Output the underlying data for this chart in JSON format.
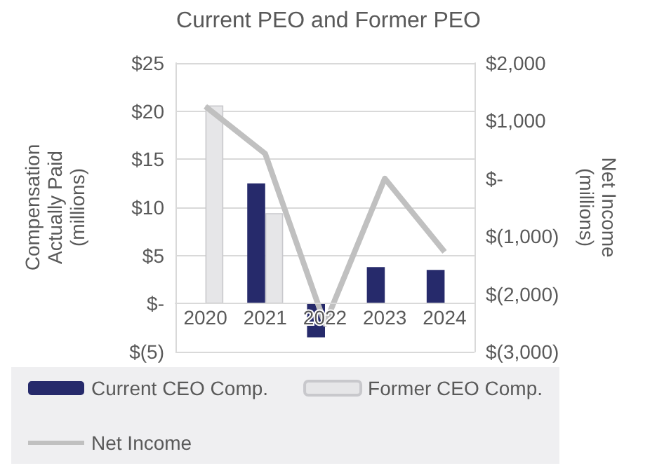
{
  "chart_data": {
    "type": "bar",
    "title": "Current PEO and Former PEO",
    "ylabel": "Compensation Actually Paid (millions)",
    "y2label": "Net Income (millions)",
    "categories": [
      "2020",
      "2021",
      "2022",
      "2023",
      "2024"
    ],
    "series": [
      {
        "name": "Current CEO Comp.",
        "color": "#262a6b",
        "values": [
          null,
          12.5,
          -3.5,
          3.8,
          3.5
        ]
      },
      {
        "name": "Former CEO Comp.",
        "color": "#e6e6e8",
        "values": [
          20.6,
          9.4,
          null,
          null,
          null
        ]
      },
      {
        "name": "Net Income",
        "type": "line",
        "axis": "y2",
        "color": "#c0c0c0",
        "values": [
          1250,
          430,
          -2520,
          0,
          -1270
        ]
      }
    ],
    "ylim": [
      -5,
      25
    ],
    "yticks": [
      {
        "value": -5,
        "label": "$(5)"
      },
      {
        "value": 0,
        "label": "$-"
      },
      {
        "value": 5,
        "label": "$5"
      },
      {
        "value": 10,
        "label": "$10"
      },
      {
        "value": 15,
        "label": "$15"
      },
      {
        "value": 20,
        "label": "$20"
      },
      {
        "value": 25,
        "label": "$25"
      }
    ],
    "y2lim": [
      -3000,
      2000
    ],
    "y2ticks": [
      {
        "value": -3000,
        "label": "$(3,000)"
      },
      {
        "value": -2000,
        "label": "$(2,000)"
      },
      {
        "value": -1000,
        "label": "$(1,000)"
      },
      {
        "value": 0,
        "label": "$-"
      },
      {
        "value": 1000,
        "label": "$1,000"
      },
      {
        "value": 2000,
        "label": "$2,000"
      }
    ],
    "grid": "y",
    "legend": "bottom",
    "marker": "none"
  }
}
